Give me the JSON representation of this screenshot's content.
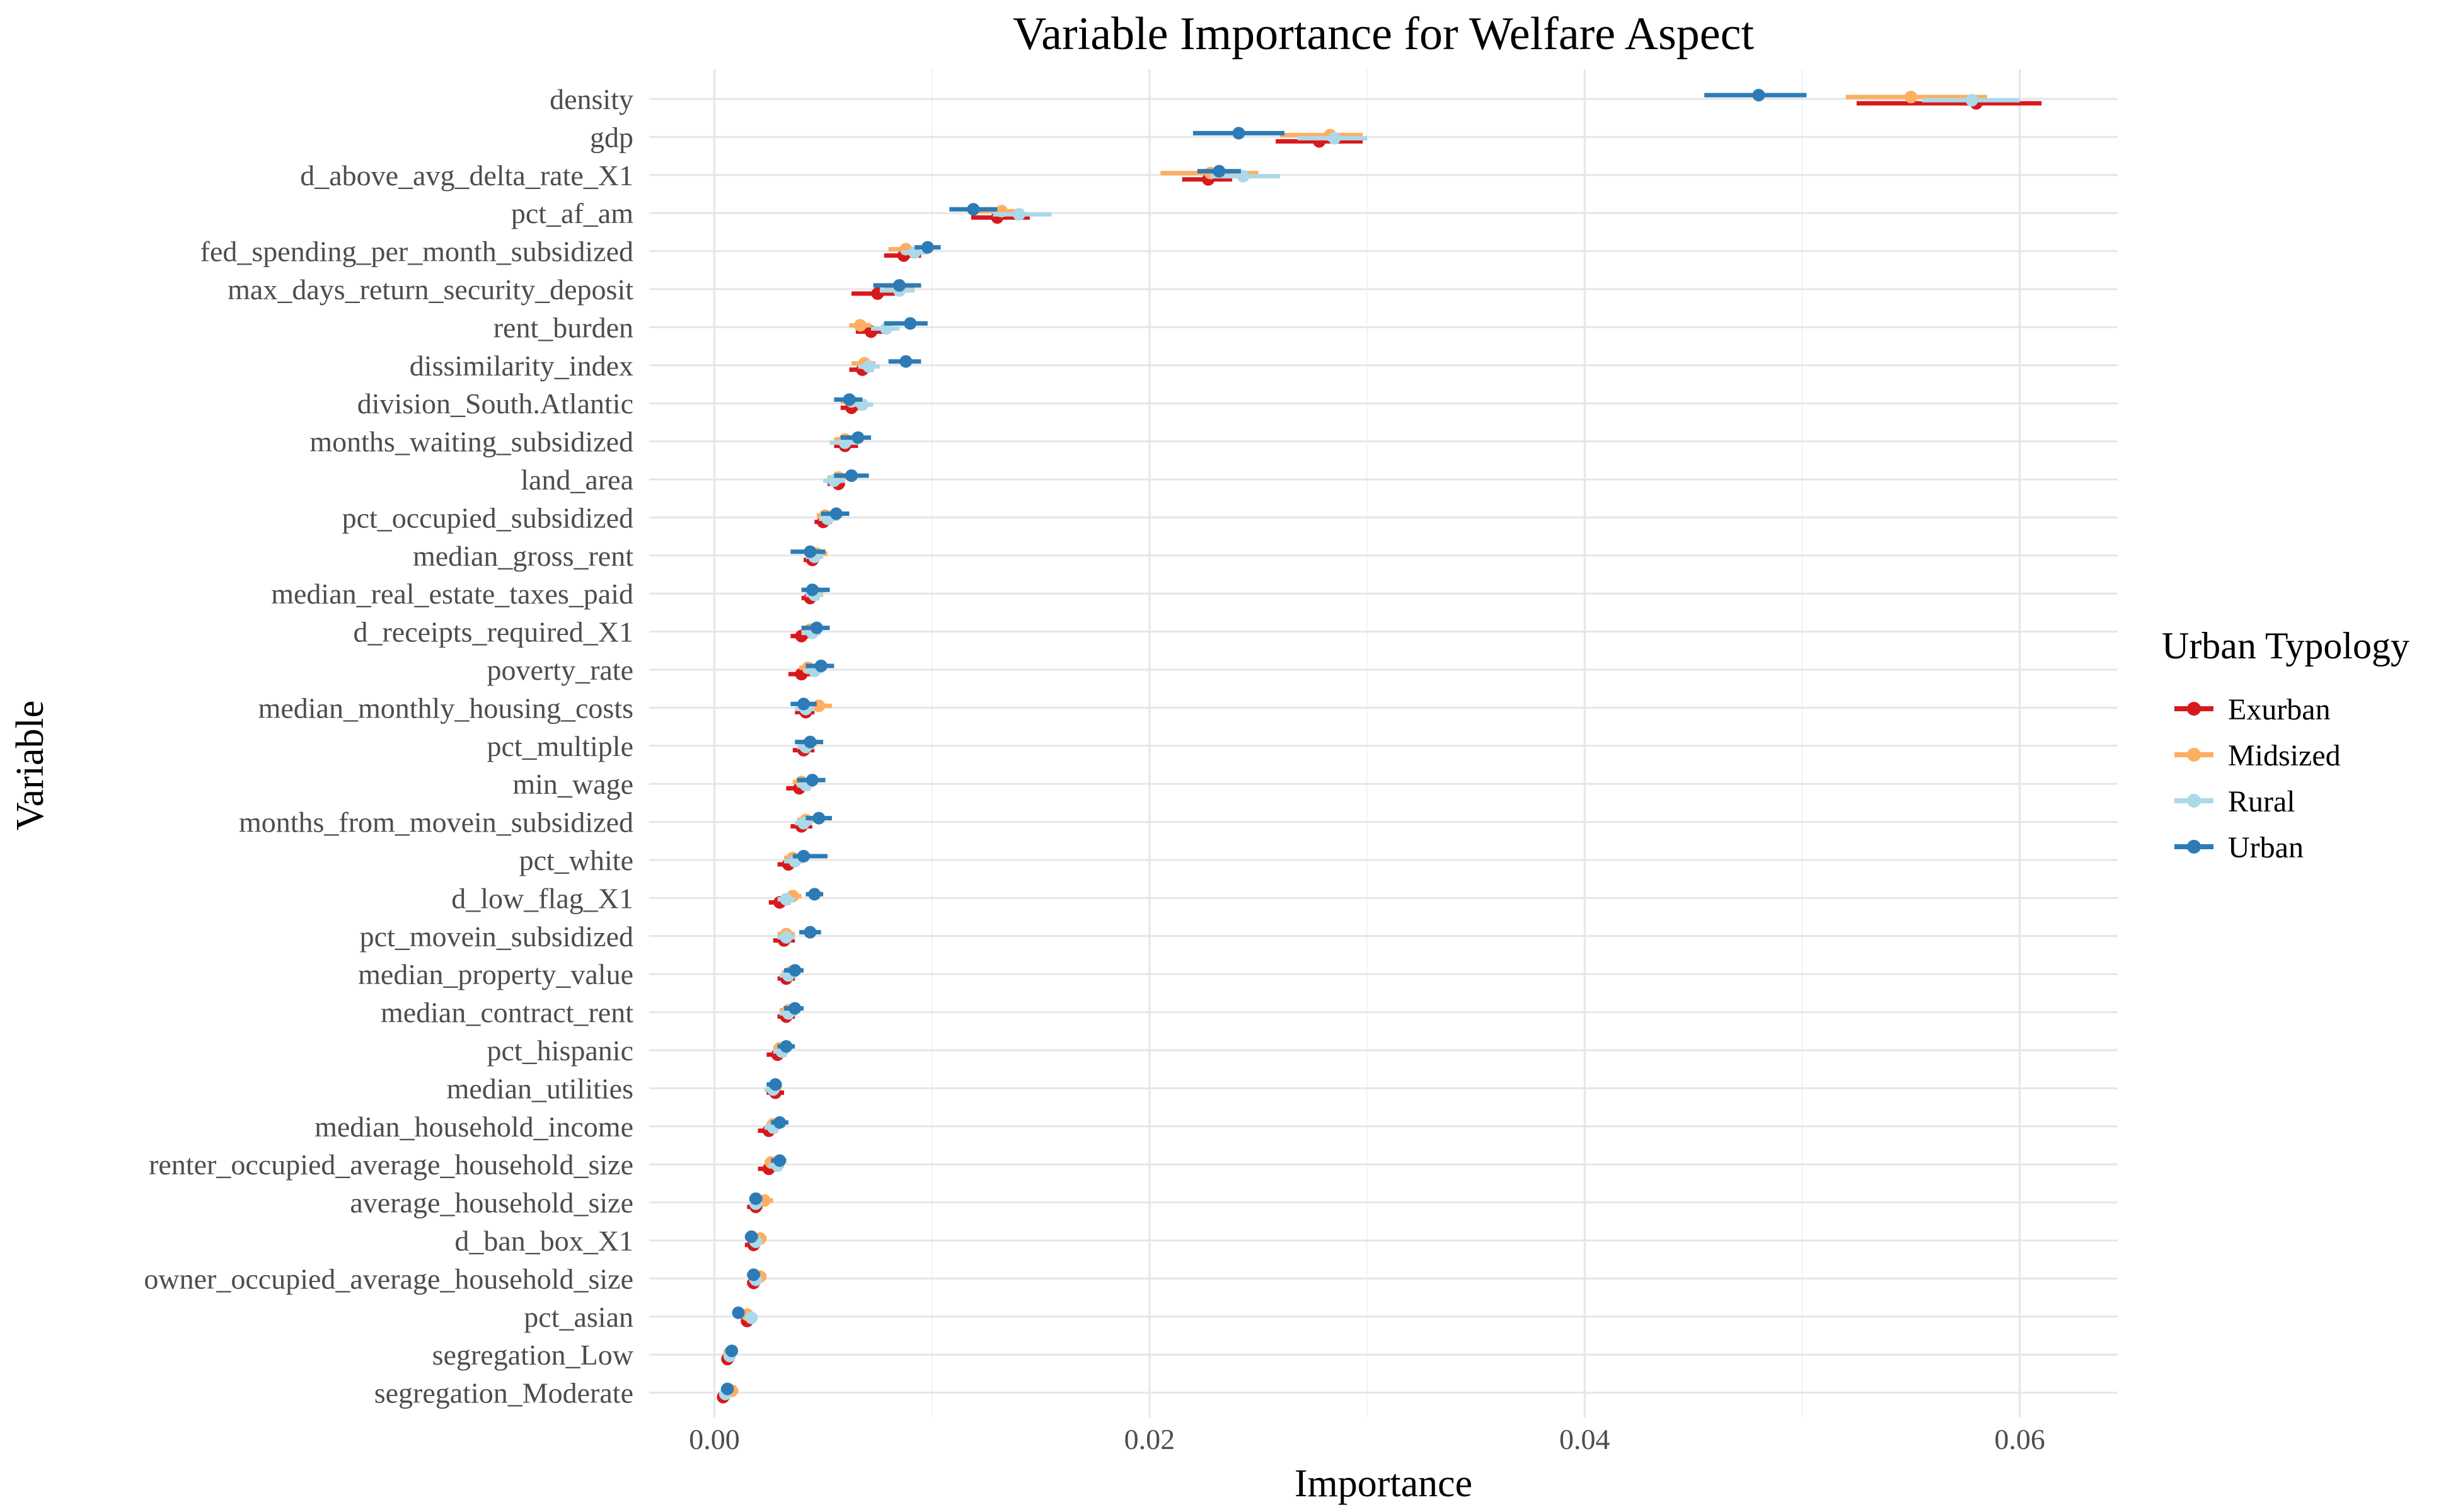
{
  "chart_data": {
    "type": "dot-errorbar",
    "title": "Variable Importance for Welfare Aspect",
    "xlabel": "Importance",
    "ylabel": "Variable",
    "xlim": [
      -0.003,
      0.0645
    ],
    "xticks": [
      0.0,
      0.02,
      0.04,
      0.06
    ],
    "xtick_labels": [
      "0.00",
      "0.02",
      "0.04",
      "0.06"
    ],
    "grid": true,
    "legend": {
      "title": "Urban Typology",
      "position": "right",
      "entries": [
        {
          "name": "Exurban",
          "color": "#d7191c"
        },
        {
          "name": "Midsized",
          "color": "#fdae61"
        },
        {
          "name": "Rural",
          "color": "#abd9e9"
        },
        {
          "name": "Urban",
          "color": "#2c7bb6"
        }
      ]
    },
    "categories": [
      "density",
      "gdp",
      "d_above_avg_delta_rate_X1",
      "pct_af_am",
      "fed_spending_per_month_subsidized",
      "max_days_return_security_deposit",
      "rent_burden",
      "dissimilarity_index",
      "division_South.Atlantic",
      "months_waiting_subsidized",
      "land_area",
      "pct_occupied_subsidized",
      "median_gross_rent",
      "median_real_estate_taxes_paid",
      "d_receipts_required_X1",
      "poverty_rate",
      "median_monthly_housing_costs",
      "pct_multiple",
      "min_wage",
      "months_from_movein_subsidized",
      "pct_white",
      "d_low_flag_X1",
      "pct_movein_subsidized",
      "median_property_value",
      "median_contract_rent",
      "pct_hispanic",
      "median_utilities",
      "median_household_income",
      "renter_occupied_average_household_size",
      "average_household_size",
      "d_ban_box_X1",
      "owner_occupied_average_household_size",
      "pct_asian",
      "segregation_Low",
      "segregation_Moderate"
    ],
    "series": [
      {
        "name": "Exurban",
        "values": [
          0.058,
          0.0278,
          0.0227,
          0.013,
          0.0087,
          0.0075,
          0.0072,
          0.0068,
          0.0063,
          0.006,
          0.0057,
          0.005,
          0.0045,
          0.0044,
          0.004,
          0.004,
          0.0042,
          0.0041,
          0.0039,
          0.004,
          0.0034,
          0.003,
          0.0032,
          0.0033,
          0.0033,
          0.0029,
          0.0028,
          0.0025,
          0.0025,
          0.0019,
          0.0018,
          0.0018,
          0.0015,
          0.0006,
          0.0004
        ],
        "low": [
          0.0525,
          0.0258,
          0.0215,
          0.0118,
          0.0078,
          0.0063,
          0.0065,
          0.0062,
          0.0058,
          0.0055,
          0.0052,
          0.0046,
          0.0041,
          0.004,
          0.0035,
          0.0034,
          0.0037,
          0.0036,
          0.0033,
          0.0035,
          0.0029,
          0.0025,
          0.0027,
          0.0029,
          0.0029,
          0.0024,
          0.0024,
          0.002,
          0.002,
          0.0015,
          0.0014,
          0.0015,
          0.0013,
          0.0004,
          0.0002
        ],
        "high": [
          0.061,
          0.0298,
          0.0238,
          0.0145,
          0.0095,
          0.0083,
          0.0078,
          0.0073,
          0.0068,
          0.0066,
          0.006,
          0.0054,
          0.0048,
          0.0048,
          0.0045,
          0.0045,
          0.0046,
          0.0046,
          0.0044,
          0.0045,
          0.0038,
          0.0035,
          0.0037,
          0.0037,
          0.0037,
          0.0033,
          0.0032,
          0.0029,
          0.0029,
          0.0022,
          0.0021,
          0.0021,
          0.0017,
          0.0009,
          0.0007
        ]
      },
      {
        "name": "Midsized",
        "values": [
          0.055,
          0.0283,
          0.0228,
          0.0132,
          0.0088,
          0.0085,
          0.0067,
          0.0069,
          0.0063,
          0.006,
          0.0057,
          0.0051,
          0.0047,
          0.0046,
          0.0044,
          0.0043,
          0.0048,
          0.0043,
          0.004,
          0.0042,
          0.0036,
          0.0036,
          0.0033,
          0.0035,
          0.0034,
          0.003,
          0.0028,
          0.0027,
          0.0026,
          0.0023,
          0.0021,
          0.0021,
          0.0015,
          0.0007,
          0.0008
        ],
        "low": [
          0.052,
          0.026,
          0.0205,
          0.012,
          0.008,
          0.0078,
          0.0062,
          0.0063,
          0.0058,
          0.0055,
          0.0052,
          0.0047,
          0.0042,
          0.0042,
          0.004,
          0.0039,
          0.0043,
          0.0039,
          0.0036,
          0.0038,
          0.0032,
          0.0032,
          0.0029,
          0.0031,
          0.003,
          0.0027,
          0.0025,
          0.0024,
          0.0023,
          0.002,
          0.0018,
          0.0018,
          0.0013,
          0.0005,
          0.0005
        ],
        "high": [
          0.0585,
          0.0298,
          0.025,
          0.0142,
          0.0094,
          0.0092,
          0.0072,
          0.0074,
          0.0068,
          0.0065,
          0.0062,
          0.0055,
          0.0052,
          0.005,
          0.0048,
          0.0047,
          0.0054,
          0.0047,
          0.0044,
          0.0046,
          0.004,
          0.004,
          0.0037,
          0.0039,
          0.0038,
          0.0033,
          0.0031,
          0.003,
          0.0029,
          0.0027,
          0.0024,
          0.0024,
          0.0017,
          0.001,
          0.0011
        ]
      },
      {
        "name": "Rural",
        "values": [
          0.0578,
          0.0285,
          0.0243,
          0.014,
          0.0092,
          0.0085,
          0.0079,
          0.0071,
          0.0068,
          0.006,
          0.0055,
          0.0052,
          0.0046,
          0.0046,
          0.0045,
          0.0046,
          0.0042,
          0.0042,
          0.0042,
          0.0041,
          0.0037,
          0.0033,
          0.0033,
          0.0034,
          0.0034,
          0.0031,
          0.0027,
          0.0027,
          0.0029,
          0.0019,
          0.0019,
          0.0019,
          0.0017,
          0.0007,
          0.0005
        ],
        "low": [
          0.0555,
          0.0268,
          0.0228,
          0.0128,
          0.0086,
          0.0076,
          0.0072,
          0.0066,
          0.0062,
          0.0053,
          0.005,
          0.0048,
          0.0042,
          0.0042,
          0.004,
          0.0041,
          0.0037,
          0.0038,
          0.0038,
          0.0037,
          0.0032,
          0.0029,
          0.0029,
          0.003,
          0.003,
          0.0027,
          0.0023,
          0.0023,
          0.0025,
          0.0016,
          0.0016,
          0.0016,
          0.0014,
          0.0005,
          0.0003
        ],
        "high": [
          0.06,
          0.03,
          0.026,
          0.0155,
          0.0098,
          0.0092,
          0.0085,
          0.0076,
          0.0073,
          0.0066,
          0.006,
          0.0057,
          0.005,
          0.005,
          0.0049,
          0.005,
          0.0046,
          0.0046,
          0.0046,
          0.0045,
          0.0041,
          0.0037,
          0.0037,
          0.0038,
          0.0038,
          0.0034,
          0.003,
          0.003,
          0.0032,
          0.0022,
          0.0022,
          0.0022,
          0.0019,
          0.0009,
          0.0007
        ]
      },
      {
        "name": "Urban",
        "values": [
          0.048,
          0.0241,
          0.0232,
          0.0119,
          0.0098,
          0.0085,
          0.009,
          0.0088,
          0.0062,
          0.0066,
          0.0063,
          0.0056,
          0.0044,
          0.0045,
          0.0047,
          0.0049,
          0.0041,
          0.0044,
          0.0045,
          0.0048,
          0.0041,
          0.0046,
          0.0044,
          0.0037,
          0.0037,
          0.0033,
          0.0028,
          0.003,
          0.003,
          0.0019,
          0.0017,
          0.0018,
          0.0011,
          0.0008,
          0.0006
        ],
        "low": [
          0.0455,
          0.022,
          0.0222,
          0.0108,
          0.0092,
          0.0073,
          0.0078,
          0.008,
          0.0055,
          0.0058,
          0.0055,
          0.0049,
          0.0035,
          0.004,
          0.004,
          0.0042,
          0.0035,
          0.0037,
          0.0038,
          0.0042,
          0.0036,
          0.0042,
          0.0039,
          0.0032,
          0.0032,
          0.0029,
          0.0024,
          0.0026,
          0.0026,
          0.0016,
          0.0014,
          0.0015,
          0.0009,
          0.0005,
          0.0003
        ],
        "high": [
          0.0502,
          0.0262,
          0.0242,
          0.013,
          0.0104,
          0.0095,
          0.0098,
          0.0095,
          0.0068,
          0.0072,
          0.0071,
          0.0062,
          0.0051,
          0.0053,
          0.0053,
          0.0055,
          0.0047,
          0.005,
          0.0051,
          0.0054,
          0.0052,
          0.005,
          0.0049,
          0.0041,
          0.0041,
          0.0037,
          0.0031,
          0.0034,
          0.0033,
          0.0022,
          0.002,
          0.0021,
          0.0013,
          0.001,
          0.0008
        ]
      }
    ]
  }
}
